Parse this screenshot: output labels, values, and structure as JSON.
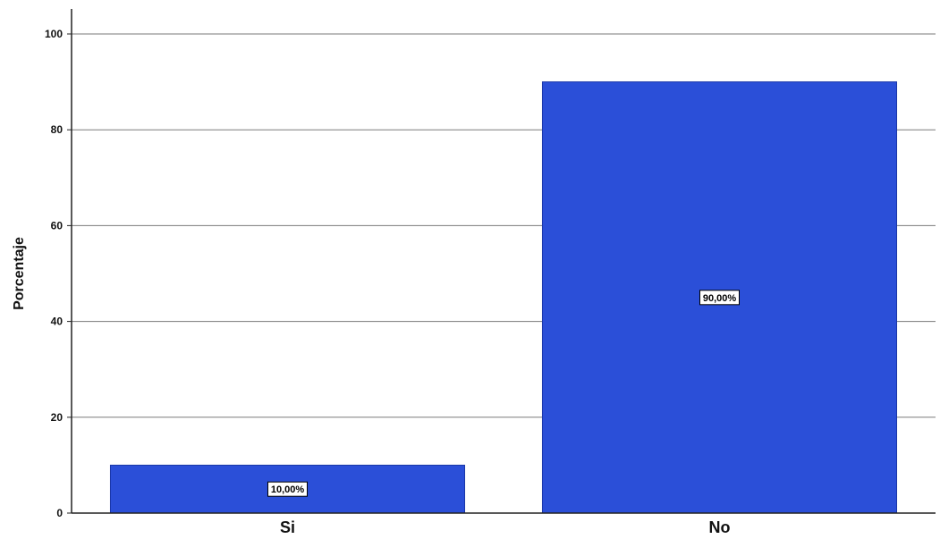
{
  "chart_data": {
    "type": "bar",
    "categories": [
      "Si",
      "No"
    ],
    "values": [
      10.0,
      90.0
    ],
    "data_labels": [
      "10,00%",
      "90,00%"
    ],
    "title": "",
    "xlabel": "",
    "ylabel": "Porcentaje",
    "ylim": [
      0,
      100
    ],
    "yticks": [
      0,
      20,
      40,
      60,
      80,
      100
    ],
    "grid": true,
    "bar_color": "#2B4FD8",
    "bar_edge_color": "#1A37A8"
  }
}
